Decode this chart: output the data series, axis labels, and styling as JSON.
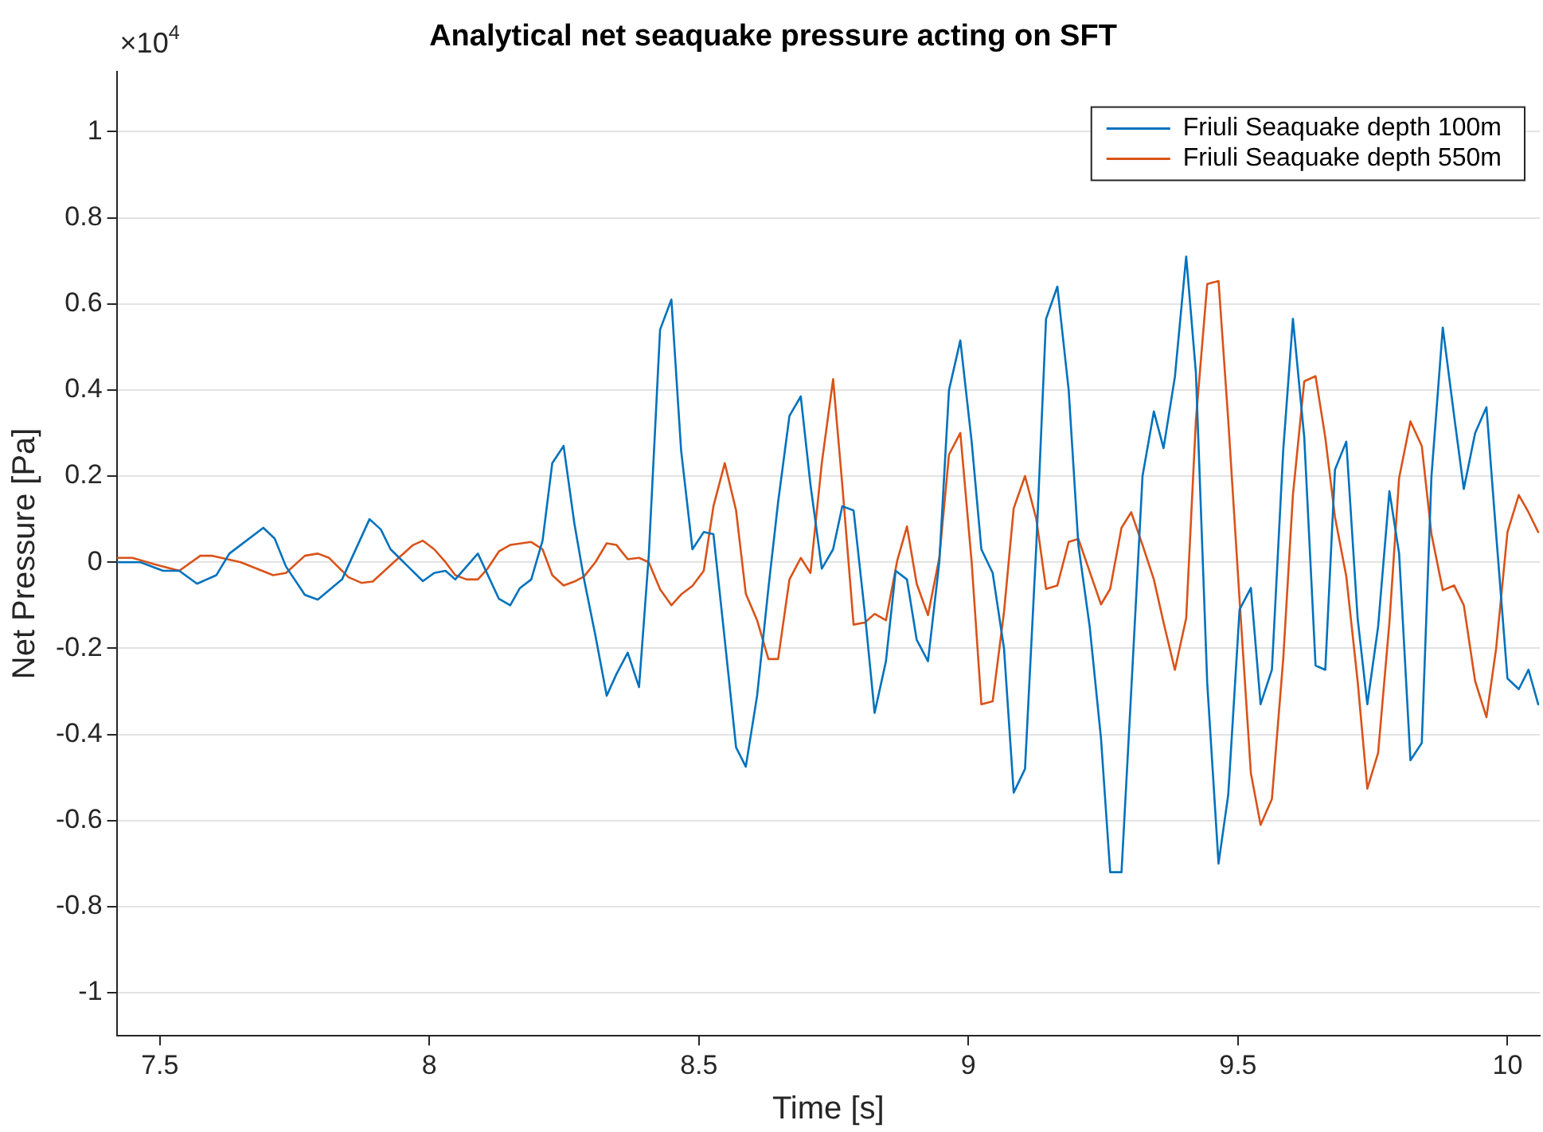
{
  "chart_data": {
    "type": "line",
    "title": "Analytical net seaquake pressure acting on SFT",
    "xlabel": "Time [s]",
    "ylabel": "Net Pressure [Pa]",
    "annotations": [
      "×10$^{4}$"
    ],
    "xlim": [
      7.42,
      10.06
    ],
    "xticks": [
      7.5,
      8,
      8.5,
      9,
      9.5,
      10
    ],
    "ylim": [
      -1.1,
      1.14
    ],
    "yticks": [
      -1,
      -0.8,
      -0.6,
      -0.4,
      -0.2,
      0,
      0.2,
      0.4,
      0.6,
      0.8,
      1
    ],
    "grid": "y",
    "legend": "top right",
    "marker": "none",
    "line_style": "solid",
    "series": [
      {
        "name": "Friuli Seaquake depth 100m",
        "color": "#0072bd",
        "x": [
          7.422,
          7.464,
          7.506,
          7.536,
          7.569,
          7.605,
          7.629,
          7.692,
          7.713,
          7.734,
          7.769,
          7.793,
          7.838,
          7.889,
          7.91,
          7.928,
          7.988,
          8.009,
          8.03,
          8.048,
          8.069,
          8.09,
          8.129,
          8.15,
          8.168,
          8.189,
          8.21,
          8.228,
          8.249,
          8.269,
          8.287,
          8.308,
          8.329,
          8.347,
          8.368,
          8.389,
          8.407,
          8.428,
          8.449,
          8.467,
          8.488,
          8.509,
          8.527,
          8.548,
          8.569,
          8.587,
          8.608,
          8.629,
          8.647,
          8.668,
          8.689,
          8.707,
          8.728,
          8.749,
          8.766,
          8.787,
          8.808,
          8.826,
          8.847,
          8.865,
          8.886,
          8.904,
          8.925,
          8.946,
          8.964,
          8.985,
          9.006,
          9.024,
          9.045,
          9.066,
          9.084,
          9.105,
          9.126,
          9.144,
          9.165,
          9.186,
          9.204,
          9.225,
          9.246,
          9.263,
          9.284,
          9.302,
          9.323,
          9.344,
          9.362,
          9.383,
          9.404,
          9.422,
          9.443,
          9.464,
          9.482,
          9.503,
          9.524,
          9.542,
          9.563,
          9.584,
          9.602,
          9.623,
          9.644,
          9.662,
          9.68,
          9.701,
          9.722,
          9.74,
          9.76,
          9.781,
          9.799,
          9.82,
          9.841,
          9.859,
          9.88,
          9.901,
          9.919,
          9.94,
          9.961,
          9.979,
          10.0,
          10.021,
          10.039,
          10.057
        ],
        "values": [
          0.0,
          0.0,
          -0.02,
          -0.02,
          -0.05,
          -0.03,
          0.02,
          0.08,
          0.055,
          -0.01,
          -0.076,
          -0.087,
          -0.04,
          0.1,
          0.076,
          0.03,
          -0.044,
          -0.025,
          -0.02,
          -0.04,
          -0.01,
          0.02,
          -0.085,
          -0.1,
          -0.06,
          -0.04,
          0.05,
          0.23,
          0.27,
          0.09,
          -0.04,
          -0.17,
          -0.31,
          -0.26,
          -0.21,
          -0.29,
          0.015,
          0.54,
          0.61,
          0.26,
          0.03,
          0.07,
          0.065,
          -0.18,
          -0.43,
          -0.475,
          -0.31,
          -0.06,
          0.14,
          0.34,
          0.385,
          0.18,
          -0.015,
          0.03,
          0.13,
          0.12,
          -0.12,
          -0.35,
          -0.23,
          -0.02,
          -0.04,
          -0.18,
          -0.23,
          0.0,
          0.4,
          0.515,
          0.28,
          0.03,
          -0.025,
          -0.2,
          -0.535,
          -0.48,
          0.04,
          0.565,
          0.64,
          0.4,
          0.04,
          -0.15,
          -0.41,
          -0.72,
          -0.72,
          -0.3,
          0.2,
          0.35,
          0.265,
          0.43,
          0.71,
          0.44,
          -0.28,
          -0.7,
          -0.54,
          -0.11,
          -0.06,
          -0.33,
          -0.25,
          0.26,
          0.565,
          0.29,
          -0.24,
          -0.25,
          0.215,
          0.28,
          -0.13,
          -0.33,
          -0.15,
          0.165,
          0.02,
          -0.46,
          -0.42,
          0.2,
          0.545,
          0.34,
          0.17,
          0.3,
          0.36,
          0.065,
          -0.27,
          -0.295,
          -0.25,
          -0.33
        ]
      },
      {
        "name": "Friuli Seaquake depth 550m",
        "color": "#d95319",
        "x": [
          7.422,
          7.449,
          7.491,
          7.536,
          7.575,
          7.596,
          7.65,
          7.71,
          7.734,
          7.769,
          7.793,
          7.814,
          7.85,
          7.874,
          7.895,
          7.934,
          7.97,
          7.988,
          8.009,
          8.03,
          8.048,
          8.069,
          8.09,
          8.108,
          8.129,
          8.15,
          8.189,
          8.21,
          8.228,
          8.249,
          8.269,
          8.287,
          8.308,
          8.329,
          8.347,
          8.368,
          8.389,
          8.407,
          8.428,
          8.449,
          8.467,
          8.488,
          8.509,
          8.527,
          8.548,
          8.569,
          8.587,
          8.608,
          8.629,
          8.647,
          8.668,
          8.689,
          8.707,
          8.728,
          8.749,
          8.766,
          8.787,
          8.808,
          8.826,
          8.847,
          8.868,
          8.886,
          8.904,
          8.925,
          8.946,
          8.964,
          8.985,
          9.006,
          9.024,
          9.045,
          9.066,
          9.084,
          9.105,
          9.126,
          9.144,
          9.165,
          9.186,
          9.204,
          9.225,
          9.246,
          9.263,
          9.284,
          9.302,
          9.323,
          9.344,
          9.362,
          9.383,
          9.404,
          9.422,
          9.443,
          9.464,
          9.482,
          9.503,
          9.524,
          9.542,
          9.563,
          9.584,
          9.602,
          9.623,
          9.644,
          9.662,
          9.68,
          9.701,
          9.722,
          9.74,
          9.76,
          9.781,
          9.799,
          9.82,
          9.841,
          9.859,
          9.88,
          9.901,
          9.919,
          9.94,
          9.961,
          9.979,
          10.0,
          10.021,
          10.039,
          10.057
        ],
        "values": [
          0.01,
          0.01,
          -0.005,
          -0.02,
          0.015,
          0.015,
          0.0,
          -0.03,
          -0.025,
          0.015,
          0.02,
          0.01,
          -0.035,
          -0.048,
          -0.045,
          0.0,
          0.04,
          0.05,
          0.03,
          0.0,
          -0.03,
          -0.04,
          -0.04,
          -0.015,
          0.025,
          0.04,
          0.047,
          0.03,
          -0.03,
          -0.054,
          -0.045,
          -0.033,
          0.0,
          0.044,
          0.04,
          0.007,
          0.01,
          0.0,
          -0.063,
          -0.1,
          -0.075,
          -0.055,
          -0.02,
          0.13,
          0.23,
          0.12,
          -0.073,
          -0.135,
          -0.225,
          -0.225,
          -0.04,
          0.01,
          -0.025,
          0.23,
          0.425,
          0.18,
          -0.145,
          -0.14,
          -0.12,
          -0.135,
          0.004,
          0.083,
          -0.05,
          -0.123,
          0.01,
          0.25,
          0.3,
          0.0,
          -0.33,
          -0.323,
          -0.116,
          0.125,
          0.2,
          0.1,
          -0.062,
          -0.054,
          0.047,
          0.054,
          -0.022,
          -0.098,
          -0.062,
          0.08,
          0.116,
          0.04,
          -0.04,
          -0.14,
          -0.25,
          -0.13,
          0.33,
          0.646,
          0.653,
          0.33,
          -0.087,
          -0.49,
          -0.61,
          -0.55,
          -0.225,
          0.156,
          0.42,
          0.432,
          0.29,
          0.105,
          -0.033,
          -0.276,
          -0.526,
          -0.443,
          -0.14,
          0.196,
          0.327,
          0.27,
          0.065,
          -0.065,
          -0.054,
          -0.1,
          -0.276,
          -0.36,
          -0.2,
          0.07,
          0.156,
          0.116,
          0.07
        ]
      }
    ]
  }
}
